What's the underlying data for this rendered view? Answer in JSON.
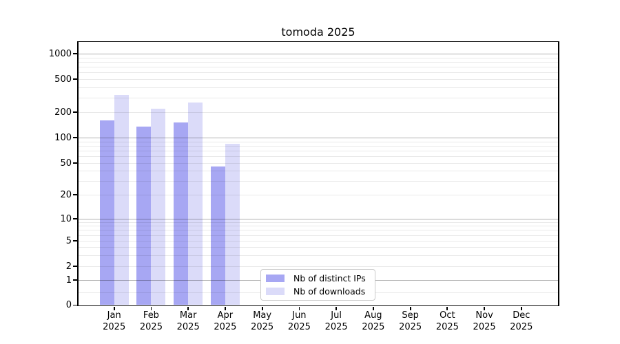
{
  "chart_data": {
    "type": "bar",
    "title": "tomoda 2025",
    "year": "2025",
    "categories": [
      "Jan",
      "Feb",
      "Mar",
      "Apr",
      "May",
      "Jun",
      "Jul",
      "Aug",
      "Sep",
      "Oct",
      "Nov",
      "Dec"
    ],
    "series": [
      {
        "name": "Nb of distinct IPs",
        "color": "#a7a7f3",
        "values": [
          160,
          135,
          150,
          45,
          null,
          null,
          null,
          null,
          null,
          null,
          null,
          null
        ]
      },
      {
        "name": "Nb of downloads",
        "color": "#dbdbf9",
        "values": [
          320,
          220,
          260,
          85,
          null,
          null,
          null,
          null,
          null,
          null,
          null,
          null
        ]
      }
    ],
    "yscale": "symlog",
    "ylim": [
      0,
      1400
    ],
    "y_ticks": [
      0,
      1,
      2,
      5,
      10,
      20,
      50,
      100,
      200,
      500,
      1000
    ],
    "y_tick_labels": [
      "0",
      "1",
      "2",
      "5",
      "10",
      "20",
      "50",
      "100",
      "200",
      "500",
      "1000"
    ],
    "xlabel": "",
    "ylabel": "",
    "grid": true,
    "legend_position": "bottom-center"
  },
  "colors": {
    "bar_distinct_ips": "#a7a7f3",
    "bar_downloads": "#dbdbf9",
    "major_gridline": "#b0b0b0",
    "minor_gridline": "#e9e9e9",
    "axis": "#000000",
    "background": "#ffffff",
    "legend_border": "#c9c9c9"
  }
}
